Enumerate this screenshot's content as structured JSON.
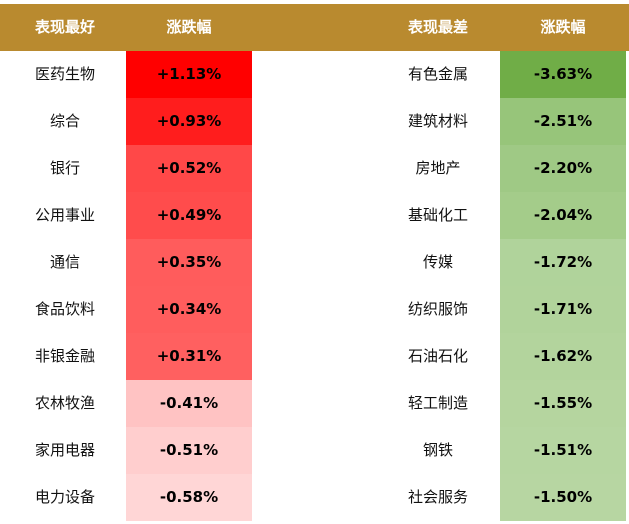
{
  "header": {
    "best_label": "表现最好",
    "best_change": "涨跌幅",
    "worst_label": "表现最差",
    "worst_change": "涨跌幅"
  },
  "colors": {
    "header_bg": "#B98A2F",
    "header_text": "#FFFFFF"
  },
  "rows": [
    {
      "best": "医药生物",
      "best_change": "+1.13%",
      "best_color": "#FF0000",
      "worst": "有色金属",
      "worst_change": "-3.63%",
      "worst_color": "#70AD47"
    },
    {
      "best": "综合",
      "best_change": "+0.93%",
      "best_color": "#FF1D1D",
      "worst": "建筑材料",
      "worst_change": "-2.51%",
      "worst_color": "#97C57A"
    },
    {
      "best": "银行",
      "best_change": "+0.52%",
      "best_color": "#FF4848",
      "worst": "房地产",
      "worst_change": "-2.20%",
      "worst_color": "#9FC985"
    },
    {
      "best": "公用事业",
      "best_change": "+0.49%",
      "best_color": "#FF4C4C",
      "worst": "基础化工",
      "worst_change": "-2.04%",
      "worst_color": "#A4CC8A"
    },
    {
      "best": "通信",
      "best_change": "+0.35%",
      "best_color": "#FF5C5C",
      "worst": "传媒",
      "worst_change": "-1.72%",
      "worst_color": "#B0D39B"
    },
    {
      "best": "食品饮料",
      "best_change": "+0.34%",
      "best_color": "#FF5D5D",
      "worst": "纺织服饰",
      "worst_change": "-1.71%",
      "worst_color": "#B1D39B"
    },
    {
      "best": "非银金融",
      "best_change": "+0.31%",
      "best_color": "#FF6060",
      "worst": "石油石化",
      "worst_change": "-1.62%",
      "worst_color": "#B3D49D"
    },
    {
      "best": "农林牧渔",
      "best_change": "-0.41%",
      "best_color": "#FFC3C3",
      "worst": "轻工制造",
      "worst_change": "-1.55%",
      "worst_color": "#B5D59F"
    },
    {
      "best": "家用电器",
      "best_change": "-0.51%",
      "best_color": "#FFCECE",
      "worst": "钢铁",
      "worst_change": "-1.51%",
      "worst_color": "#B6D6A1"
    },
    {
      "best": "电力设备",
      "best_change": "-0.58%",
      "best_color": "#FFD6D6",
      "worst": "社会服务",
      "worst_change": "-1.50%",
      "worst_color": "#B7D6A2"
    }
  ]
}
